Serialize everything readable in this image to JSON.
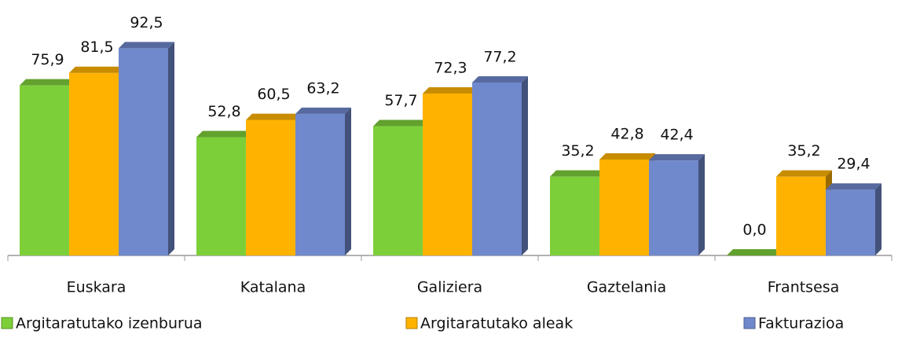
{
  "chart_data": {
    "type": "bar3d",
    "categories": [
      "Euskara",
      "Katalana",
      "Galiziera",
      "Gaztelania",
      "Frantsesa"
    ],
    "series": [
      {
        "name": "Argitaratutako izenburua",
        "color": "#7dcf3a",
        "values": [
          75.9,
          52.8,
          57.7,
          35.2,
          0.0
        ],
        "value_labels": [
          "75,9",
          "52,8",
          "57,7",
          "35,2",
          "0,0"
        ]
      },
      {
        "name": "Argitaratutako aleak",
        "color": "#ffb300",
        "values": [
          81.5,
          60.5,
          72.3,
          42.8,
          35.2
        ],
        "value_labels": [
          "81,5",
          "60,5",
          "72,3",
          "42,8",
          "35,2"
        ]
      },
      {
        "name": "Fakturazioa",
        "color": "#7088cc",
        "values": [
          92.5,
          63.2,
          77.2,
          42.4,
          29.4
        ],
        "value_labels": [
          "92,5",
          "63,2",
          "77,2",
          "42,4",
          "29,4"
        ]
      }
    ],
    "ylim": [
      0,
      100
    ],
    "legend": "bottom"
  }
}
